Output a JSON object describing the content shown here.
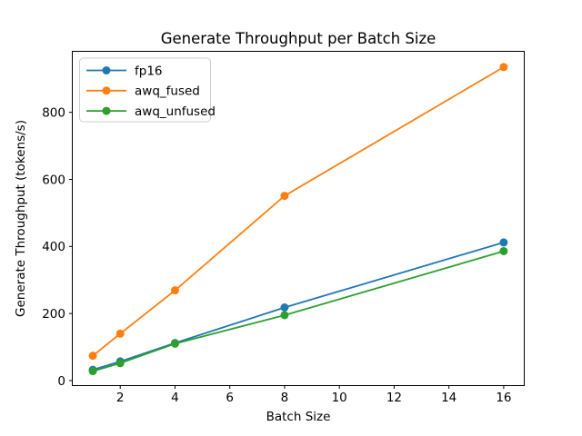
{
  "figure": {
    "background": "#ffffff"
  },
  "chart_data": {
    "type": "line",
    "title": "Generate Throughput per Batch Size",
    "xlabel": "Batch Size",
    "ylabel": "Generate Throughput (tokens/s)",
    "x": [
      1,
      2,
      4,
      8,
      16
    ],
    "series": [
      {
        "name": "fp16",
        "color": "#1f77b4",
        "values": [
          32,
          57,
          112,
          218,
          412
        ]
      },
      {
        "name": "awq_fused",
        "color": "#ff7f0e",
        "values": [
          74,
          140,
          269,
          551,
          935
        ]
      },
      {
        "name": "awq_unfused",
        "color": "#2ca02c",
        "values": [
          28,
          52,
          110,
          195,
          386
        ]
      }
    ],
    "xlim": [
      0.25,
      16.75
    ],
    "ylim": [
      -15,
      982
    ],
    "xticks": [
      2,
      4,
      6,
      8,
      10,
      12,
      14,
      16
    ],
    "yticks": [
      0,
      200,
      400,
      600,
      800
    ],
    "legend_position": "upper left",
    "grid": false,
    "marker": "o",
    "line_width": 1.8,
    "marker_radius": 4.5,
    "axis_color": "#000000",
    "legend_border_color": "#cccccc",
    "legend_background": "#ffffff"
  }
}
